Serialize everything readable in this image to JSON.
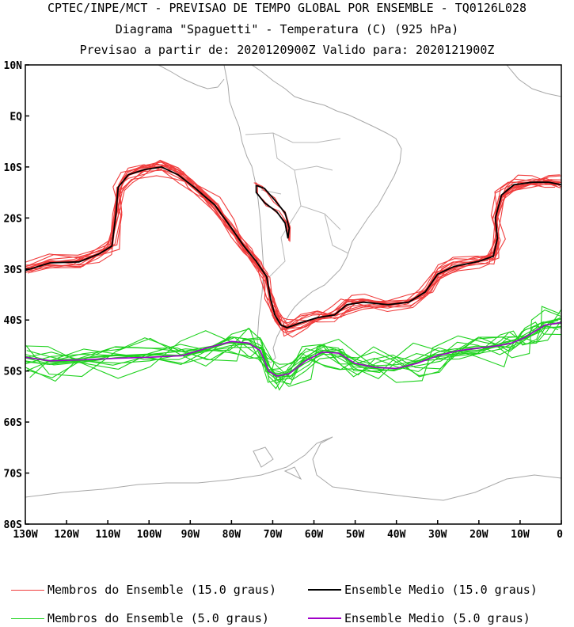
{
  "title": {
    "line1": "CPTEC/INPE/MCT - PREVISAO DE TEMPO GLOBAL POR ENSEMBLE - TQ0126L028",
    "line2": "Diagrama \"Spaguetti\" - Temperatura (C) (925 hPa)",
    "line3": "Previsao a partir de: 2020120900Z  Valido para: 2020121900Z"
  },
  "axes": {
    "lat_labels": [
      "10N",
      "EQ",
      "10S",
      "20S",
      "30S",
      "40S",
      "50S",
      "60S",
      "70S",
      "80S"
    ],
    "lat_values": [
      10,
      0,
      -10,
      -20,
      -30,
      -40,
      -50,
      -60,
      -70,
      -80
    ],
    "lon_labels": [
      "130W",
      "120W",
      "110W",
      "100W",
      "90W",
      "80W",
      "70W",
      "60W",
      "50W",
      "40W",
      "30W",
      "20W",
      "10W",
      "0"
    ],
    "lon_values": [
      -130,
      -120,
      -110,
      -100,
      -90,
      -80,
      -70,
      -60,
      -50,
      -40,
      -30,
      -20,
      -10,
      0
    ]
  },
  "legend": [
    {
      "label": "Membros do Ensemble (15.0 graus)",
      "color": "#f03c3c"
    },
    {
      "label": "Ensemble Medio (15.0 graus)",
      "color": "#000000"
    },
    {
      "label": "Membros do Ensemble (5.0 graus)",
      "color": "#1ed21e"
    },
    {
      "label": "Ensemble Medio (5.0 graus)",
      "color": "#a000c8"
    }
  ],
  "contours": {
    "mean_15": [
      [
        -130,
        -30.3
      ],
      [
        -124,
        -28.8
      ],
      [
        -117,
        -28.6
      ],
      [
        -112,
        -27
      ],
      [
        -109,
        -25.5
      ],
      [
        -108,
        -19
      ],
      [
        -107.5,
        -14
      ],
      [
        -105,
        -11.5
      ],
      [
        -101,
        -10.5
      ],
      [
        -97,
        -10
      ],
      [
        -93,
        -11.5
      ],
      [
        -89,
        -14
      ],
      [
        -84,
        -17.5
      ],
      [
        -80,
        -22
      ],
      [
        -77,
        -25.5
      ],
      [
        -74,
        -28.5
      ],
      [
        -71.5,
        -31.5
      ],
      [
        -70.5,
        -36
      ],
      [
        -69.5,
        -39
      ],
      [
        -68,
        -41
      ],
      [
        -66.5,
        -41.5
      ],
      [
        -63,
        -40.5
      ],
      [
        -59,
        -39.5
      ],
      [
        -55,
        -39
      ],
      [
        -52,
        -37
      ],
      [
        -48,
        -36.5
      ],
      [
        -42,
        -37
      ],
      [
        -37,
        -36.5
      ],
      [
        -33,
        -34.5
      ],
      [
        -30,
        -31
      ],
      [
        -26,
        -29.5
      ],
      [
        -20,
        -28.5
      ],
      [
        -16.5,
        -27.5
      ],
      [
        -15.5,
        -24
      ],
      [
        -16,
        -20
      ],
      [
        -14.5,
        -15.5
      ],
      [
        -11.5,
        -13.5
      ],
      [
        -7,
        -13
      ],
      [
        -3,
        -13
      ],
      [
        0,
        -13.5
      ]
    ],
    "mean_15_andes": [
      [
        -74,
        -13.6
      ],
      [
        -72,
        -14.2
      ],
      [
        -69.5,
        -16.5
      ],
      [
        -67,
        -19
      ],
      [
        -66,
        -22
      ],
      [
        -66.3,
        -24
      ],
      [
        -67,
        -21
      ],
      [
        -69,
        -18.8
      ],
      [
        -72,
        -17
      ],
      [
        -74,
        -15
      ],
      [
        -74,
        -13.6
      ]
    ],
    "mean_5": [
      [
        -130,
        -47.3
      ],
      [
        -124,
        -48
      ],
      [
        -116,
        -47.8
      ],
      [
        -108,
        -47.5
      ],
      [
        -100,
        -47.3
      ],
      [
        -92,
        -47
      ],
      [
        -86,
        -45.5
      ],
      [
        -80,
        -44.2
      ],
      [
        -76,
        -44.5
      ],
      [
        -73,
        -46
      ],
      [
        -71,
        -50
      ],
      [
        -69,
        -51
      ],
      [
        -66,
        -50.5
      ],
      [
        -62,
        -48
      ],
      [
        -58,
        -46.3
      ],
      [
        -54,
        -46.5
      ],
      [
        -50,
        -48.5
      ],
      [
        -45,
        -49.3
      ],
      [
        -40,
        -49.5
      ],
      [
        -35,
        -48.5
      ],
      [
        -30,
        -47
      ],
      [
        -25,
        -46
      ],
      [
        -20,
        -45.5
      ],
      [
        -15,
        -45
      ],
      [
        -12,
        -44.5
      ],
      [
        -9,
        -43.5
      ],
      [
        -6,
        -42
      ],
      [
        -4,
        -41
      ],
      [
        0,
        -40.5
      ]
    ]
  }
}
